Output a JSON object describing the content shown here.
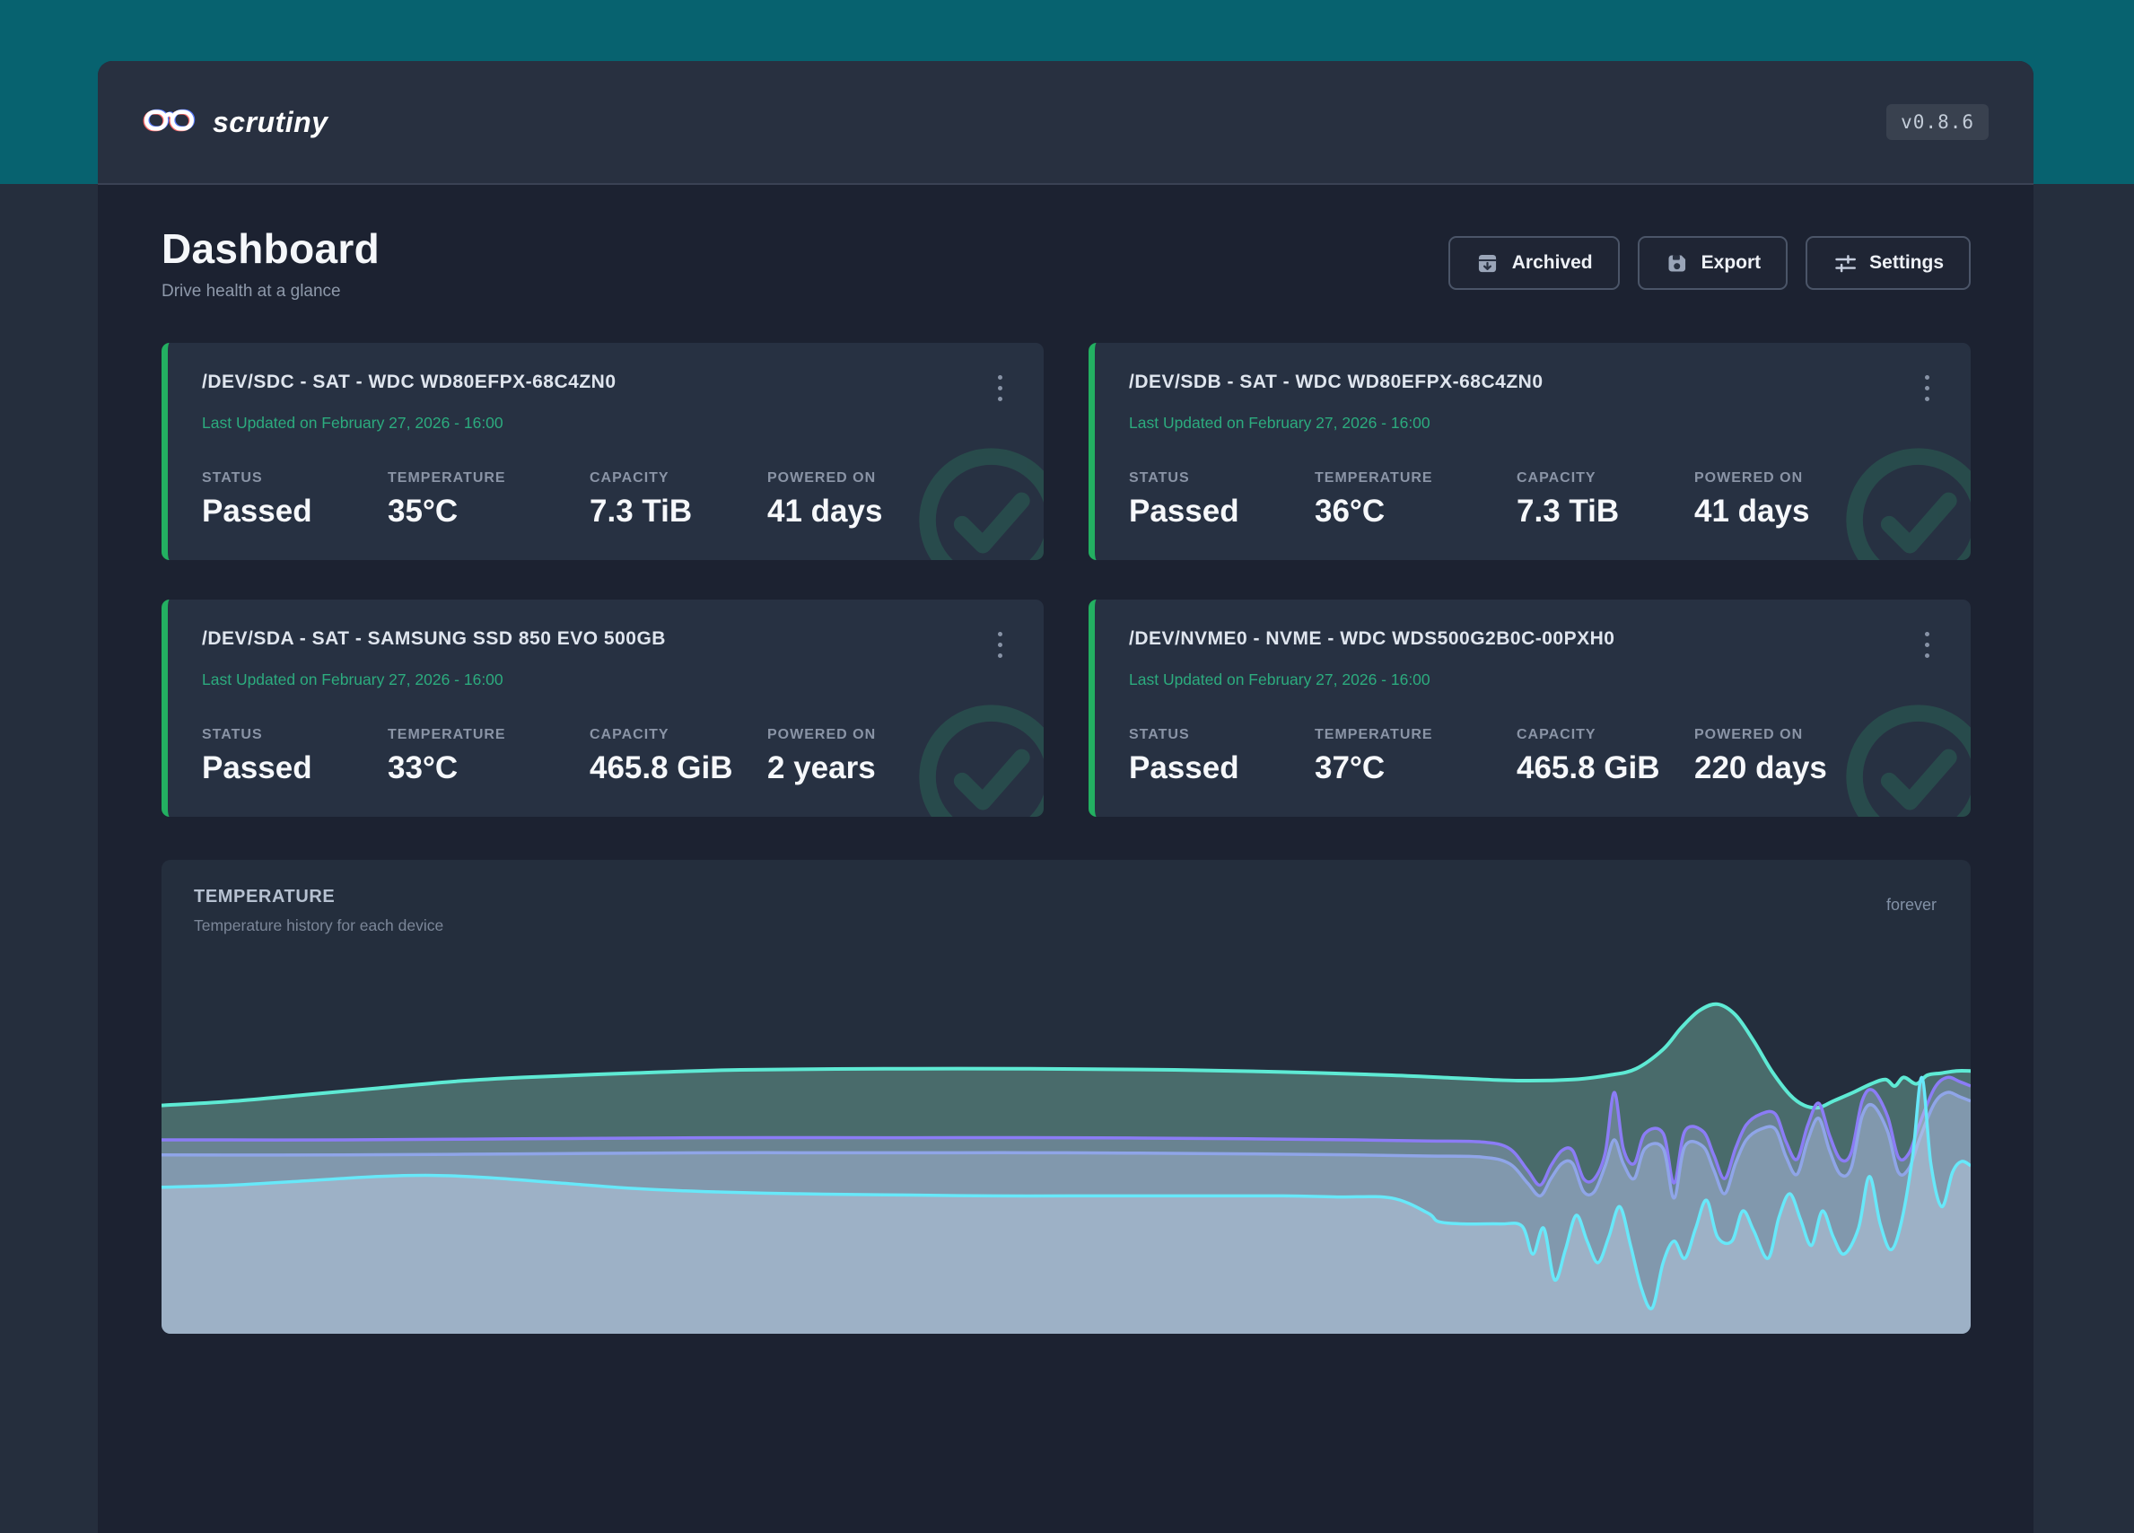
{
  "app": {
    "name": "scrutiny",
    "version": "v0.8.6"
  },
  "page": {
    "title": "Dashboard",
    "subtitle": "Drive health at a glance"
  },
  "toolbar": {
    "archived_label": "Archived",
    "export_label": "Export",
    "settings_label": "Settings"
  },
  "stat_labels": {
    "status": "STATUS",
    "temperature": "TEMPERATURE",
    "capacity": "CAPACITY",
    "powered_on": "POWERED ON"
  },
  "drives": [
    {
      "title": "/DEV/SDC - SAT - WDC WD80EFPX-68C4ZN0",
      "updated": "Last Updated on February 27, 2026 - 16:00",
      "status": "Passed",
      "temperature": "35°C",
      "capacity": "7.3 TiB",
      "powered_on": "41 days"
    },
    {
      "title": "/DEV/SDB - SAT - WDC WD80EFPX-68C4ZN0",
      "updated": "Last Updated on February 27, 2026 - 16:00",
      "status": "Passed",
      "temperature": "36°C",
      "capacity": "7.3 TiB",
      "powered_on": "41 days"
    },
    {
      "title": "/DEV/SDA - SAT - SAMSUNG SSD 850 EVO 500GB",
      "updated": "Last Updated on February 27, 2026 - 16:00",
      "status": "Passed",
      "temperature": "33°C",
      "capacity": "465.8 GiB",
      "powered_on": "2 years"
    },
    {
      "title": "/DEV/NVME0 - NVME - WDC WDS500G2B0C-00PXH0",
      "updated": "Last Updated on February 27, 2026 - 16:00",
      "status": "Passed",
      "temperature": "37°C",
      "capacity": "465.8 GiB",
      "powered_on": "220 days"
    }
  ],
  "temperature_panel": {
    "title": "TEMPERATURE",
    "subtitle": "Temperature history for each device",
    "range_label": "forever"
  },
  "colors": {
    "header_teal": "#07626f",
    "outer_background": "#252e3d",
    "card_background": "#1c2231",
    "panel_background": "#242e3d",
    "drive_card_background": "#273142",
    "accent_green_border": "#23b061",
    "updated_text_green": "#2cab7e",
    "series_teal": "#5eead4",
    "series_purple": "#8b7cf6",
    "series_periwinkle": "#8fa5e8",
    "series_cyan": "#67e8f9"
  },
  "chart_data": {
    "type": "area",
    "title": "TEMPERATURE",
    "subtitle": "Temperature history for each device",
    "x_range_label": "forever",
    "unit": "°C",
    "ylim": [
      26,
      48
    ],
    "xlim": [
      0,
      100
    ],
    "grid": false,
    "legend": false,
    "series": [
      {
        "name": "teal",
        "color": "#5eead4",
        "fill": "rgba(148,226,196,0.34)",
        "stroke_width": 4,
        "points": [
          [
            0,
            36.6
          ],
          [
            4,
            36.8
          ],
          [
            8,
            37.1
          ],
          [
            12,
            37.4
          ],
          [
            16,
            37.7
          ],
          [
            20,
            37.9
          ],
          [
            26,
            38.1
          ],
          [
            32,
            38.25
          ],
          [
            40,
            38.3
          ],
          [
            48,
            38.3
          ],
          [
            56,
            38.25
          ],
          [
            62,
            38.15
          ],
          [
            68,
            38.0
          ],
          [
            72,
            37.85
          ],
          [
            75,
            37.75
          ],
          [
            78,
            37.8
          ],
          [
            80,
            38.0
          ],
          [
            81.5,
            38.3
          ],
          [
            83,
            39.2
          ],
          [
            84,
            40.2
          ],
          [
            85,
            41.0
          ],
          [
            86,
            41.3
          ],
          [
            87,
            40.8
          ],
          [
            88,
            39.6
          ],
          [
            89,
            38.2
          ],
          [
            90,
            37.1
          ],
          [
            90.8,
            36.6
          ],
          [
            91.6,
            36.5
          ],
          [
            92.4,
            36.8
          ],
          [
            93.5,
            37.2
          ],
          [
            94.5,
            37.6
          ],
          [
            95.3,
            37.8
          ],
          [
            95.8,
            37.5
          ],
          [
            96.3,
            37.9
          ],
          [
            97,
            37.6
          ],
          [
            97.6,
            38.0
          ],
          [
            98.4,
            38.1
          ],
          [
            99.2,
            38.2
          ],
          [
            100,
            38.2
          ]
        ]
      },
      {
        "name": "purple",
        "color": "#8b7cf6",
        "fill": "rgba(173,185,226,0.32)",
        "stroke_width": 3.5,
        "points": [
          [
            0,
            35.0
          ],
          [
            10,
            35.0
          ],
          [
            20,
            35.05
          ],
          [
            30,
            35.1
          ],
          [
            40,
            35.1
          ],
          [
            50,
            35.1
          ],
          [
            60,
            35.05
          ],
          [
            66,
            35.0
          ],
          [
            70,
            34.95
          ],
          [
            73,
            34.9
          ],
          [
            74.5,
            34.6
          ],
          [
            75.5,
            33.6
          ],
          [
            76.2,
            32.9
          ],
          [
            76.8,
            33.8
          ],
          [
            77.4,
            34.5
          ],
          [
            78,
            34.5
          ],
          [
            78.6,
            33.2
          ],
          [
            79.2,
            33.2
          ],
          [
            79.8,
            34.4
          ],
          [
            80.3,
            37.2
          ],
          [
            80.8,
            34.6
          ],
          [
            81.4,
            33.9
          ],
          [
            82,
            35.3
          ],
          [
            83,
            35.3
          ],
          [
            83.6,
            33.0
          ],
          [
            84.2,
            35.4
          ],
          [
            85.2,
            35.4
          ],
          [
            85.8,
            34.3
          ],
          [
            86.4,
            33.2
          ],
          [
            87,
            34.6
          ],
          [
            87.6,
            35.7
          ],
          [
            88.4,
            36.2
          ],
          [
            89.2,
            36.2
          ],
          [
            89.8,
            34.9
          ],
          [
            90.4,
            34.1
          ],
          [
            91,
            35.7
          ],
          [
            91.6,
            36.7
          ],
          [
            92.2,
            35.2
          ],
          [
            92.8,
            34.1
          ],
          [
            93.4,
            34.4
          ],
          [
            94,
            36.8
          ],
          [
            94.6,
            37.3
          ],
          [
            95.4,
            36.1
          ],
          [
            96,
            34.2
          ],
          [
            96.6,
            34.4
          ],
          [
            97.2,
            35.8
          ],
          [
            98,
            37.4
          ],
          [
            98.7,
            37.9
          ],
          [
            99.4,
            37.7
          ],
          [
            100,
            37.5
          ]
        ]
      },
      {
        "name": "periwinkle",
        "color": "#8fa5e8",
        "fill": "rgba(180,196,232,0.32)",
        "stroke_width": 3.5,
        "points": [
          [
            0,
            34.3
          ],
          [
            10,
            34.3
          ],
          [
            20,
            34.35
          ],
          [
            30,
            34.4
          ],
          [
            40,
            34.4
          ],
          [
            50,
            34.4
          ],
          [
            60,
            34.35
          ],
          [
            66,
            34.3
          ],
          [
            70,
            34.25
          ],
          [
            73,
            34.2
          ],
          [
            74.5,
            33.9
          ],
          [
            75.5,
            33.0
          ],
          [
            76.2,
            32.4
          ],
          [
            76.8,
            33.2
          ],
          [
            77.4,
            33.9
          ],
          [
            78,
            33.9
          ],
          [
            78.6,
            32.6
          ],
          [
            79.2,
            32.6
          ],
          [
            79.8,
            33.8
          ],
          [
            80.3,
            35.0
          ],
          [
            80.8,
            33.9
          ],
          [
            81.4,
            33.2
          ],
          [
            82,
            34.6
          ],
          [
            83,
            34.6
          ],
          [
            83.6,
            32.3
          ],
          [
            84.2,
            34.7
          ],
          [
            85.2,
            34.7
          ],
          [
            85.8,
            33.6
          ],
          [
            86.4,
            32.5
          ],
          [
            87,
            33.9
          ],
          [
            87.6,
            35.0
          ],
          [
            88.4,
            35.5
          ],
          [
            89.2,
            35.5
          ],
          [
            89.8,
            34.2
          ],
          [
            90.4,
            33.4
          ],
          [
            91,
            35.0
          ],
          [
            91.6,
            36.0
          ],
          [
            92.2,
            34.5
          ],
          [
            92.8,
            33.4
          ],
          [
            93.4,
            33.7
          ],
          [
            94,
            36.1
          ],
          [
            94.6,
            36.6
          ],
          [
            95.4,
            35.4
          ],
          [
            96,
            33.5
          ],
          [
            96.6,
            33.7
          ],
          [
            97.2,
            35.1
          ],
          [
            98,
            36.7
          ],
          [
            98.7,
            37.2
          ],
          [
            99.4,
            37.0
          ],
          [
            100,
            36.8
          ]
        ]
      },
      {
        "name": "cyan",
        "color": "#67e8f9",
        "fill": "rgba(190,208,228,0.46)",
        "stroke_width": 3.5,
        "points": [
          [
            0,
            32.8
          ],
          [
            4,
            32.9
          ],
          [
            8,
            33.1
          ],
          [
            12,
            33.3
          ],
          [
            15,
            33.35
          ],
          [
            18,
            33.25
          ],
          [
            22,
            33.0
          ],
          [
            26,
            32.75
          ],
          [
            30,
            32.6
          ],
          [
            35,
            32.5
          ],
          [
            40,
            32.45
          ],
          [
            46,
            32.4
          ],
          [
            52,
            32.4
          ],
          [
            58,
            32.4
          ],
          [
            62,
            32.4
          ],
          [
            65,
            32.35
          ],
          [
            68,
            32.3
          ],
          [
            70,
            31.6
          ],
          [
            70.6,
            31.2
          ],
          [
            72,
            31.1
          ],
          [
            74,
            31.1
          ],
          [
            75.2,
            31.0
          ],
          [
            75.8,
            29.7
          ],
          [
            76.4,
            30.9
          ],
          [
            77,
            28.5
          ],
          [
            77.6,
            29.9
          ],
          [
            78.2,
            31.5
          ],
          [
            78.8,
            30.3
          ],
          [
            79.4,
            29.3
          ],
          [
            80,
            30.5
          ],
          [
            80.6,
            31.9
          ],
          [
            81.2,
            30.1
          ],
          [
            81.8,
            28.1
          ],
          [
            82.4,
            27.2
          ],
          [
            83,
            29.3
          ],
          [
            83.6,
            30.3
          ],
          [
            84.2,
            29.5
          ],
          [
            84.8,
            30.9
          ],
          [
            85.4,
            32.2
          ],
          [
            86,
            30.5
          ],
          [
            86.8,
            30.3
          ],
          [
            87.4,
            31.7
          ],
          [
            88,
            30.8
          ],
          [
            88.8,
            29.5
          ],
          [
            89.4,
            31.4
          ],
          [
            90,
            32.5
          ],
          [
            90.6,
            31.3
          ],
          [
            91.2,
            30.1
          ],
          [
            91.8,
            31.7
          ],
          [
            92.4,
            30.5
          ],
          [
            93,
            29.7
          ],
          [
            93.8,
            30.9
          ],
          [
            94.4,
            33.3
          ],
          [
            95,
            31.1
          ],
          [
            95.6,
            29.9
          ],
          [
            96.2,
            31.3
          ],
          [
            96.8,
            34.3
          ],
          [
            97.3,
            37.9
          ],
          [
            97.8,
            33.9
          ],
          [
            98.4,
            31.9
          ],
          [
            99,
            33.5
          ],
          [
            99.5,
            34.0
          ],
          [
            100,
            33.8
          ]
        ]
      }
    ]
  }
}
